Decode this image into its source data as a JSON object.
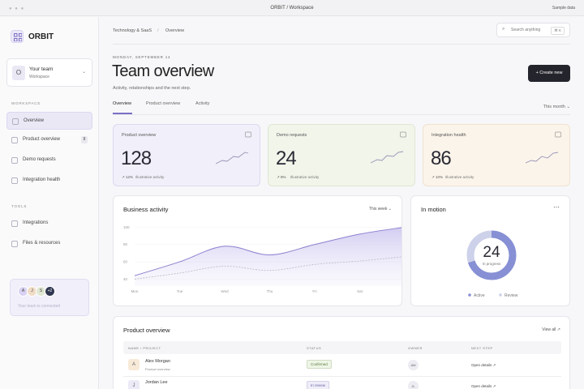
{
  "window": {
    "title": "ORBIT / Workspace",
    "action": "Sample data"
  },
  "sidebar": {
    "brand": "ORBIT",
    "team": {
      "initial": "O",
      "name": "Your team",
      "sub": "Workspace"
    },
    "sections": [
      {
        "label": "WORKSPACE",
        "items": [
          {
            "label": "Overview"
          },
          {
            "label": "Product overview",
            "badge": "8"
          },
          {
            "label": "Demo requests"
          },
          {
            "label": "Integration health"
          }
        ]
      },
      {
        "label": "TOOLS",
        "items": [
          {
            "label": "Integrations"
          },
          {
            "label": "Files & resources"
          }
        ]
      }
    ],
    "team_card": {
      "avatars": [
        "A",
        "J",
        "S",
        "+2"
      ],
      "text": "Your team is connected"
    }
  },
  "header": {
    "breadcrumb": [
      "Technology & SaaS",
      "Overview"
    ],
    "search": "Search anything",
    "shortcut": "⌘ K",
    "date": "MONDAY, SEPTEMBER 14",
    "title": "Team overview",
    "subtitle": "Activity, relationships and the next step.",
    "button": "+ Create new"
  },
  "tabs": {
    "items": [
      "Overview",
      "Product overview",
      "Activity"
    ],
    "filter": "This month ⌄"
  },
  "stats": [
    {
      "title": "Product overview",
      "value": 128,
      "change": "↗ 12%",
      "note": "Illustrative activity"
    },
    {
      "title": "Demo requests",
      "value": 24,
      "change": "↗ 8%",
      "note": "Illustrative activity"
    },
    {
      "title": "Integration health",
      "value": 86,
      "change": "↗ 10%",
      "note": "Illustrative activity"
    }
  ],
  "business_activity": {
    "title": "Business activity",
    "filter": "This week ⌄",
    "categories": [
      "Mon",
      "Tue",
      "Wed",
      "Thu",
      "Fri",
      "Sat",
      "Sun"
    ],
    "ylim": [
      32,
      104
    ],
    "yticks": [
      40,
      60,
      80,
      100
    ],
    "series": [
      {
        "values": [
          44,
          60,
          78,
          68,
          80,
          92,
          100
        ],
        "color": "#8c80cf"
      },
      {
        "values": [
          40,
          47,
          55,
          50,
          57,
          61,
          66
        ],
        "color": "#b9b9c4"
      }
    ]
  },
  "in_motion": {
    "title": "In motion",
    "value": 24,
    "caption": "In progress",
    "segments": [
      {
        "name": "Active",
        "value": 70,
        "color": "#8790d4"
      },
      {
        "name": "Review",
        "value": 30,
        "color": "#cdd1ea"
      }
    ]
  },
  "table": {
    "title": "Product overview",
    "link": "View all ↗",
    "columns": [
      "NAME / PROJECT",
      "STATUS",
      "OWNER",
      "NEXT STEP"
    ],
    "rows": [
      {
        "initial": "A",
        "name": "Alex Morgan",
        "project": "Product overview",
        "status": "Confirmed",
        "owner": "AM",
        "next": "Open details ↗"
      },
      {
        "initial": "J",
        "name": "Jordan Lee",
        "project": "Demo requests",
        "status": "In review",
        "owner": "JL",
        "next": "Open details ↗"
      }
    ]
  }
}
